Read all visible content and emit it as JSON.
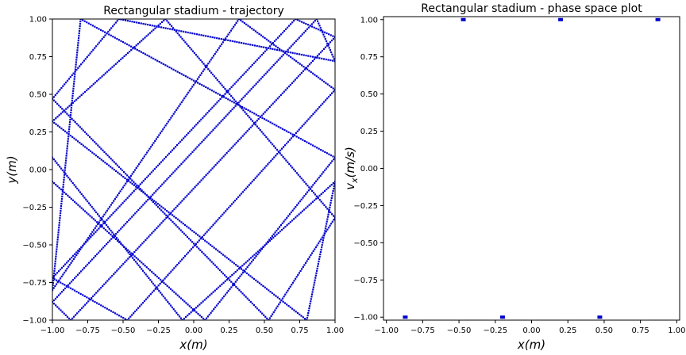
{
  "colors": {
    "marker": "#0000cc",
    "axes": "#000000",
    "background": "#ffffff"
  },
  "chart_data": [
    {
      "type": "scatter",
      "title": "Rectangular stadium - trajectory",
      "xlabel": "x(m)",
      "ylabel": "y(m)",
      "xlim": [
        -1.0,
        1.0
      ],
      "ylim": [
        -1.0,
        1.0
      ],
      "xticks": [
        -1.0,
        -0.75,
        -0.5,
        -0.25,
        0.0,
        0.25,
        0.5,
        0.75,
        1.0
      ],
      "yticks": [
        -1.0,
        -0.75,
        -0.5,
        -0.25,
        0.0,
        0.25,
        0.5,
        0.75,
        1.0
      ],
      "xtick_labels": [
        "−1.00",
        "−0.75",
        "−0.50",
        "−0.25",
        "0.00",
        "0.25",
        "0.50",
        "0.75",
        "1.00"
      ],
      "ytick_labels": [
        "−1.00",
        "−0.75",
        "−0.50",
        "−0.25",
        "0.00",
        "0.25",
        "0.50",
        "0.75",
        "1.00"
      ],
      "grid": false,
      "path_vertices": [
        [
          -1.0,
          0.08
        ],
        [
          -0.08,
          -1.0
        ],
        [
          1.0,
          -0.08
        ],
        [
          0.8,
          -1.0
        ],
        [
          -1.0,
          0.32
        ],
        [
          -0.2,
          1.0
        ],
        [
          1.0,
          -0.32
        ],
        [
          0.53,
          -1.0
        ],
        [
          -1.0,
          0.47
        ],
        [
          -0.53,
          1.0
        ],
        [
          1.0,
          0.72
        ],
        [
          0.87,
          1.0
        ],
        [
          -1.0,
          -0.88
        ],
        [
          -0.87,
          -1.0
        ],
        [
          1.0,
          0.88
        ],
        [
          0.72,
          1.0
        ],
        [
          -1.0,
          -0.72
        ],
        [
          -0.47,
          -1.0
        ],
        [
          1.0,
          0.53
        ],
        [
          0.32,
          1.0
        ],
        [
          -1.0,
          -0.8
        ],
        [
          -0.8,
          1.0
        ],
        [
          1.0,
          0.08
        ],
        [
          0.08,
          -1.0
        ],
        [
          -1.0,
          -0.08
        ]
      ]
    },
    {
      "type": "scatter",
      "title": "Rectangular stadium - phase space plot",
      "xlabel": "x(m)",
      "ylabel": "v_x(m/s)",
      "xlim": [
        -1.02,
        1.02
      ],
      "ylim": [
        -1.02,
        1.02
      ],
      "xticks": [
        -1.0,
        -0.75,
        -0.5,
        -0.25,
        0.0,
        0.25,
        0.5,
        0.75,
        1.0
      ],
      "yticks": [
        -1.0,
        -0.75,
        -0.5,
        -0.25,
        0.0,
        0.25,
        0.5,
        0.75,
        1.0
      ],
      "xtick_labels": [
        "−1.00",
        "−0.75",
        "−0.50",
        "−0.25",
        "0.00",
        "0.25",
        "0.50",
        "0.75",
        "1.00"
      ],
      "ytick_labels": [
        "−1.00",
        "−0.75",
        "−0.50",
        "−0.25",
        "0.00",
        "0.25",
        "0.50",
        "0.75",
        "1.00"
      ],
      "grid": false,
      "points": [
        [
          -0.87,
          -1.0
        ],
        [
          -0.2,
          -1.0
        ],
        [
          0.47,
          -1.0
        ],
        [
          -0.47,
          1.0
        ],
        [
          0.2,
          1.0
        ],
        [
          0.87,
          1.0
        ]
      ]
    }
  ]
}
